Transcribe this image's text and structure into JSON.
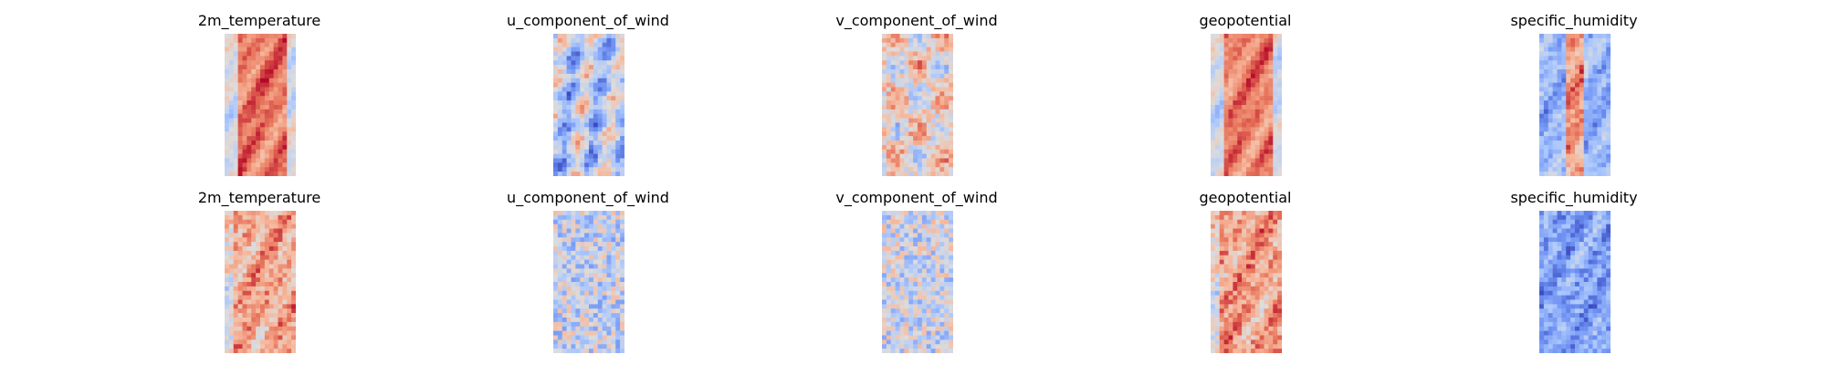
{
  "figure": {
    "colormap": "coolwarm",
    "colormap_colors": [
      "#3b4cc0",
      "#6f92f3",
      "#aac7fd",
      "#dddcdc",
      "#f7b89c",
      "#e7745b",
      "#b40426"
    ]
  },
  "chart_data": [
    {
      "type": "heatmap",
      "row": 1,
      "col": 1,
      "title": "2m_temperature",
      "pattern": "warm-band",
      "mean_level": 0.82
    },
    {
      "type": "heatmap",
      "row": 1,
      "col": 2,
      "title": "u_component_of_wind",
      "pattern": "streaks",
      "mean_level": 0.38
    },
    {
      "type": "heatmap",
      "row": 1,
      "col": 3,
      "title": "v_component_of_wind",
      "pattern": "blotches",
      "mean_level": 0.55
    },
    {
      "type": "heatmap",
      "row": 1,
      "col": 4,
      "title": "geopotential",
      "pattern": "warm-band",
      "mean_level": 0.8
    },
    {
      "type": "heatmap",
      "row": 1,
      "col": 5,
      "title": "specific_humidity",
      "pattern": "center-ridge",
      "mean_level": 0.3
    },
    {
      "type": "heatmap",
      "row": 2,
      "col": 1,
      "title": "2m_temperature",
      "pattern": "warm-noisy",
      "mean_level": 0.7
    },
    {
      "type": "heatmap",
      "row": 2,
      "col": 2,
      "title": "u_component_of_wind",
      "pattern": "noise",
      "mean_level": 0.42
    },
    {
      "type": "heatmap",
      "row": 2,
      "col": 3,
      "title": "v_component_of_wind",
      "pattern": "noise",
      "mean_level": 0.45
    },
    {
      "type": "heatmap",
      "row": 2,
      "col": 4,
      "title": "geopotential",
      "pattern": "warm-noisy",
      "mean_level": 0.72
    },
    {
      "type": "heatmap",
      "row": 2,
      "col": 5,
      "title": "specific_humidity",
      "pattern": "cool-noisy",
      "mean_level": 0.22
    }
  ]
}
